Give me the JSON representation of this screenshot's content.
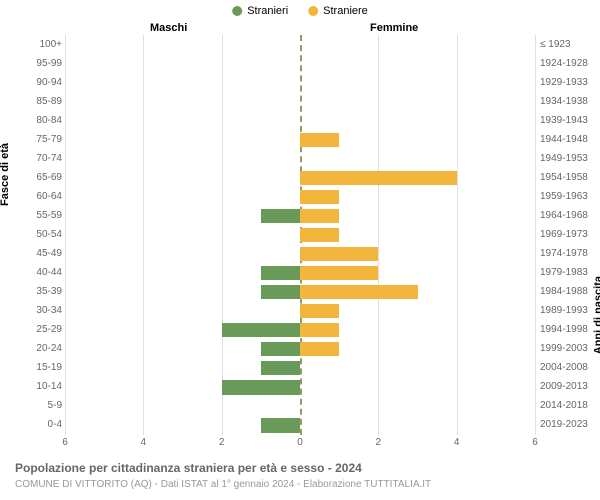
{
  "chart": {
    "type": "horizontal_bar_pyramid",
    "legend": [
      {
        "label": "Stranieri",
        "color": "#6a9a5a"
      },
      {
        "label": "Straniere",
        "color": "#f2b63c"
      }
    ],
    "section_left": "Maschi",
    "section_right": "Femmine",
    "axis_left_title": "Fasce di età",
    "axis_right_title": "Anni di nascita",
    "age_groups": [
      "0-4",
      "5-9",
      "10-14",
      "15-19",
      "20-24",
      "25-29",
      "30-34",
      "35-39",
      "40-44",
      "45-49",
      "50-54",
      "55-59",
      "60-64",
      "65-69",
      "70-74",
      "75-79",
      "80-84",
      "85-89",
      "90-94",
      "95-99",
      "100+"
    ],
    "birth_years": [
      "2019-2023",
      "2014-2018",
      "2009-2013",
      "2004-2008",
      "1999-2003",
      "1994-1998",
      "1989-1993",
      "1984-1988",
      "1979-1983",
      "1974-1978",
      "1969-1973",
      "1964-1968",
      "1959-1963",
      "1954-1958",
      "1949-1953",
      "1944-1948",
      "1939-1943",
      "1934-1938",
      "1929-1933",
      "1924-1928",
      "≤ 1923"
    ],
    "male_values": [
      1,
      0,
      2,
      1,
      1,
      2,
      0,
      1,
      1,
      0,
      0,
      1,
      0,
      0,
      0,
      0,
      0,
      0,
      0,
      0,
      0
    ],
    "female_values": [
      0,
      0,
      0,
      0,
      1,
      1,
      1,
      3,
      2,
      2,
      1,
      1,
      1,
      4,
      0,
      1,
      0,
      0,
      0,
      0,
      0
    ],
    "male_color": "#6a9a5a",
    "female_color": "#f2b63c",
    "x_range": 6,
    "x_ticks": [
      6,
      4,
      2,
      0,
      2,
      4,
      6
    ],
    "background_color": "#ffffff",
    "grid_color": "#e0e0e0",
    "bar_width_ratio": 0.75,
    "title_fontsize": 12,
    "label_fontsize": 10
  },
  "title": "Popolazione per cittadinanza straniera per età e sesso - 2024",
  "subtitle": "COMUNE DI VITTORITO (AQ) - Dati ISTAT al 1° gennaio 2024 - Elaborazione TUTTITALIA.IT"
}
